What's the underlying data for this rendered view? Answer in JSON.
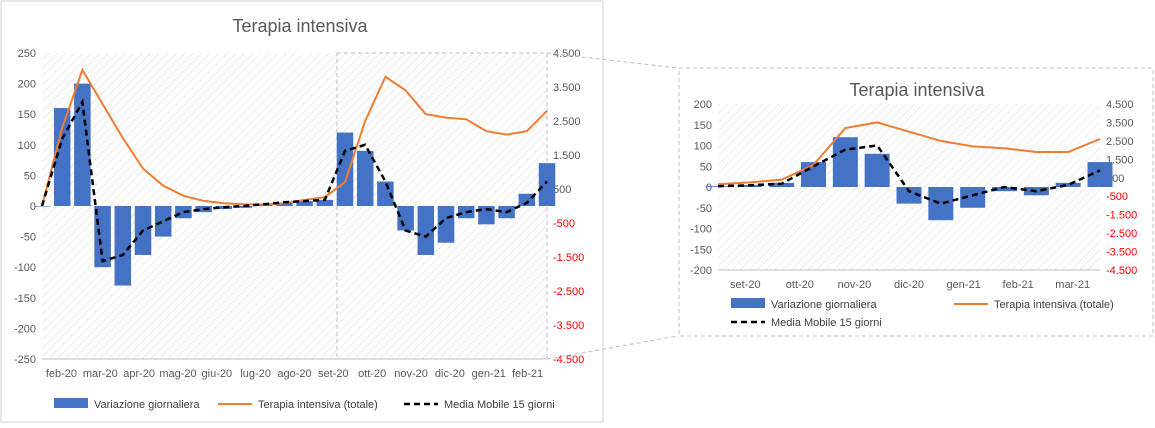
{
  "chart_data": [
    {
      "type": "bar+line",
      "title": "Terapia intensiva",
      "categories": [
        "feb-20",
        "mar-20",
        "apr-20",
        "mag-20",
        "giu-20",
        "lug-20",
        "ago-20",
        "set-20",
        "ott-20",
        "nov-20",
        "dic-20",
        "gen-21",
        "feb-21"
      ],
      "y_left": {
        "ticks": [
          "250",
          "200",
          "150",
          "100",
          "50",
          "0",
          "-50",
          "-100",
          "-150",
          "-200",
          "-250"
        ],
        "min": -250,
        "max": 250
      },
      "y_right": {
        "ticks": [
          "4.500",
          "3.500",
          "2.500",
          "1.500",
          "500",
          "-500",
          "-1.500",
          "-2.500",
          "-3.500",
          "-4.500"
        ],
        "min": -4500,
        "max": 4500,
        "negative_color": "#FF0000"
      },
      "series": [
        {
          "name": "Variazione giornaliera",
          "kind": "bar",
          "axis": "left",
          "color": "#4472C4",
          "x": [
            0,
            0.5,
            1,
            1.5,
            2,
            2.5,
            3,
            3.5,
            4,
            4.5,
            5,
            5.5,
            6,
            6.5,
            7,
            7.5,
            8,
            8.5,
            9,
            9.5,
            10,
            10.5,
            11,
            11.5,
            12,
            12.5
          ],
          "values": [
            0,
            160,
            200,
            -100,
            -130,
            -80,
            -50,
            -20,
            -10,
            -5,
            -3,
            2,
            5,
            8,
            10,
            120,
            90,
            40,
            -40,
            -80,
            -60,
            -20,
            -30,
            -20,
            20,
            70
          ]
        },
        {
          "name": "Terapia intensiva (totale)",
          "kind": "line",
          "axis": "right",
          "color": "#ED7D31",
          "x": [
            0,
            0.5,
            1,
            1.5,
            2,
            2.5,
            3,
            3.5,
            4,
            4.5,
            5,
            5.5,
            6,
            6.5,
            7,
            7.5,
            8,
            8.5,
            9,
            9.5,
            10,
            10.5,
            11,
            11.5,
            12,
            12.5
          ],
          "values": [
            0,
            2300,
            4000,
            3000,
            2000,
            1100,
            600,
            300,
            150,
            80,
            50,
            45,
            80,
            180,
            260,
            700,
            2500,
            3800,
            3400,
            2700,
            2600,
            2550,
            2200,
            2100,
            2200,
            2800
          ]
        },
        {
          "name": "Media Mobile 15 giorni",
          "kind": "line",
          "axis": "left",
          "color": "#000000",
          "dash": true,
          "x": [
            0,
            0.5,
            1,
            1.5,
            2,
            2.5,
            3,
            3.5,
            4,
            4.5,
            5,
            5.5,
            6,
            6.5,
            7,
            7.5,
            8,
            8.5,
            9,
            9.5,
            10,
            10.5,
            11,
            11.5,
            12,
            12.5
          ],
          "values": [
            0,
            110,
            170,
            -90,
            -80,
            -40,
            -25,
            -10,
            -5,
            -2,
            0,
            3,
            6,
            8,
            10,
            90,
            100,
            40,
            -40,
            -50,
            -20,
            -10,
            -5,
            -10,
            5,
            40
          ]
        }
      ],
      "legend": {
        "position": "bottom",
        "items": [
          "Variazione giornaliera",
          "Terapia intensiva (totale)",
          "Media Mobile 15 giorni"
        ]
      }
    },
    {
      "type": "bar+line",
      "title": "Terapia intensiva",
      "categories": [
        "set-20",
        "ott-20",
        "nov-20",
        "dic-20",
        "gen-21",
        "feb-21",
        "mar-21"
      ],
      "y_left": {
        "ticks": [
          "200",
          "150",
          "100",
          "50",
          "0",
          "-50",
          "-100",
          "-150",
          "-200"
        ],
        "min": -200,
        "max": 200
      },
      "y_right": {
        "ticks": [
          "4.500",
          "3.500",
          "2.500",
          "1.500",
          "500",
          "-500",
          "-1.500",
          "-2.500",
          "-3.500",
          "-4.500"
        ],
        "min": -4500,
        "max": 4500,
        "negative_color": "#FF0000"
      },
      "series": [
        {
          "name": "Variazione giornaliera",
          "kind": "bar",
          "axis": "left",
          "color": "#4472C4",
          "x": [
            0,
            0.5,
            1,
            1.5,
            2,
            2.5,
            3,
            3.5,
            4,
            4.5,
            5,
            5.5,
            6
          ],
          "values": [
            2,
            5,
            10,
            60,
            120,
            80,
            -40,
            -80,
            -50,
            -10,
            -20,
            10,
            60
          ]
        },
        {
          "name": "Terapia intensiva (totale)",
          "kind": "line",
          "axis": "right",
          "color": "#ED7D31",
          "x": [
            0,
            0.5,
            1,
            1.5,
            2,
            2.5,
            3,
            3.5,
            4,
            4.5,
            5,
            5.5,
            6
          ],
          "values": [
            150,
            250,
            400,
            1200,
            3200,
            3500,
            3000,
            2500,
            2200,
            2100,
            1900,
            1900,
            2600
          ]
        },
        {
          "name": "Media Mobile 15 giorni",
          "kind": "line",
          "axis": "left",
          "color": "#000000",
          "dash": true,
          "x": [
            0,
            0.5,
            1,
            1.5,
            2,
            2.5,
            3,
            3.5,
            4,
            4.5,
            5,
            5.5,
            6
          ],
          "values": [
            2,
            4,
            8,
            50,
            90,
            100,
            -10,
            -40,
            -20,
            0,
            -10,
            5,
            40
          ]
        }
      ],
      "legend": {
        "position": "bottom",
        "items": [
          "Variazione giornaliera",
          "Terapia intensiva (totale)",
          "Media Mobile 15 giorni"
        ]
      }
    }
  ]
}
